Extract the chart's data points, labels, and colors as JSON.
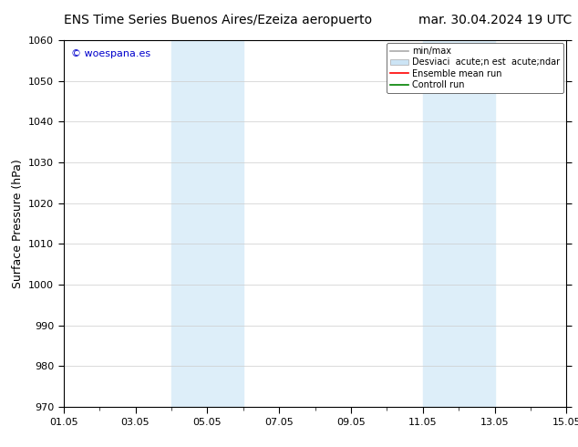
{
  "title_left": "ENS Time Series Buenos Aires/Ezeiza aeropuerto",
  "title_right": "mar. 30.04.2024 19 UTC",
  "ylabel": "Surface Pressure (hPa)",
  "ylim": [
    970,
    1060
  ],
  "yticks": [
    970,
    980,
    990,
    1000,
    1010,
    1020,
    1030,
    1040,
    1050,
    1060
  ],
  "xlim": [
    0,
    14
  ],
  "xtick_positions": [
    0,
    2,
    4,
    6,
    8,
    10,
    12,
    14
  ],
  "xtick_labels": [
    "01.05",
    "03.05",
    "05.05",
    "07.05",
    "09.05",
    "11.05",
    "13.05",
    "15.05"
  ],
  "shaded_regions": [
    {
      "xmin": 3.0,
      "xmax": 5.0,
      "color": "#ddeef9"
    },
    {
      "xmin": 10.0,
      "xmax": 12.0,
      "color": "#ddeef9"
    }
  ],
  "watermark_text": "© woespana.es",
  "watermark_color": "#0000cc",
  "legend_line1_label": "min/max",
  "legend_line1_color": "#aaaaaa",
  "legend_patch_label": "Desviaci  acute;n est  acute;ndar",
  "legend_patch_color": "#cce4f5",
  "legend_line3_label": "Ensemble mean run",
  "legend_line3_color": "#ff0000",
  "legend_line4_label": "Controll run",
  "legend_line4_color": "#008000",
  "bg_color": "#ffffff",
  "grid_color": "#cccccc",
  "title_fontsize": 10,
  "ylabel_fontsize": 9,
  "tick_fontsize": 8,
  "legend_fontsize": 7,
  "watermark_fontsize": 8
}
